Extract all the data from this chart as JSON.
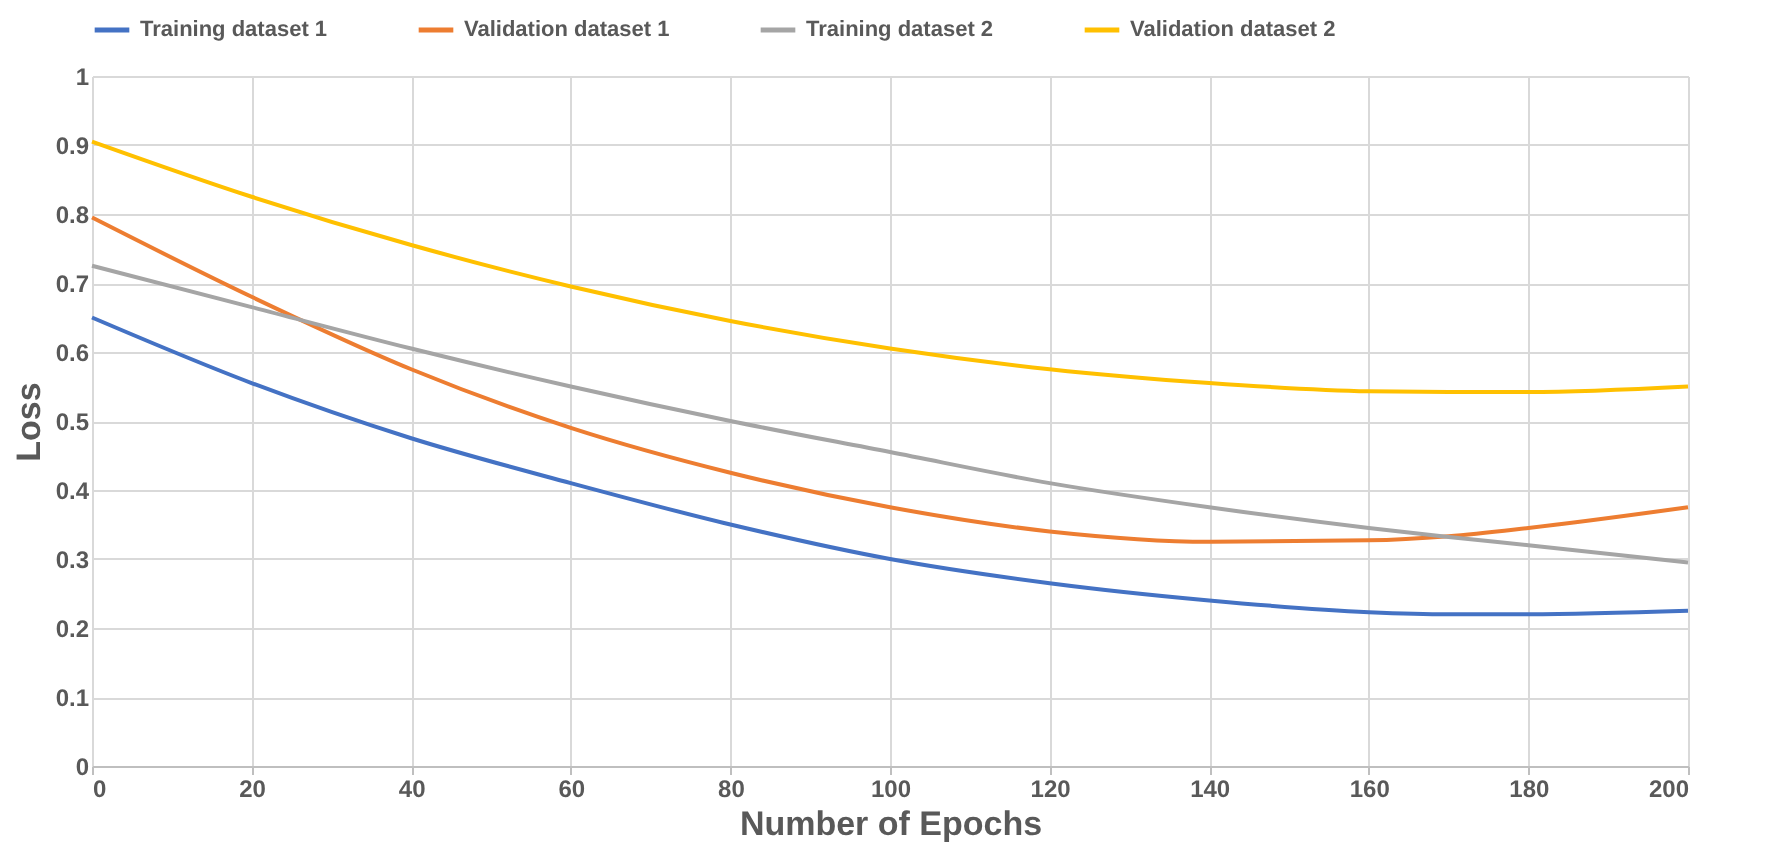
{
  "chart_data": {
    "type": "line",
    "xlabel": "Number of Epochs",
    "ylabel": "Loss",
    "x": [
      0,
      20,
      40,
      60,
      80,
      100,
      120,
      140,
      160,
      170,
      180,
      200
    ],
    "series": [
      {
        "name": "Training dataset 1",
        "color": "#4472c4",
        "values": [
          0.65,
          0.555,
          0.475,
          0.41,
          0.35,
          0.3,
          0.265,
          0.24,
          0.223,
          0.22,
          0.22,
          0.225
        ]
      },
      {
        "name": "Validation dataset 1",
        "color": "#ed7d31",
        "values": [
          0.795,
          0.68,
          0.575,
          0.49,
          0.425,
          0.375,
          0.34,
          0.325,
          0.327,
          0.333,
          0.345,
          0.375
        ]
      },
      {
        "name": "Training dataset 2",
        "color": "#a5a5a5",
        "values": [
          0.725,
          0.665,
          0.605,
          0.55,
          0.5,
          0.455,
          0.41,
          0.375,
          0.345,
          0.332,
          0.32,
          0.295
        ]
      },
      {
        "name": "Validation dataset 2",
        "color": "#ffc000",
        "values": [
          0.905,
          0.825,
          0.755,
          0.695,
          0.645,
          0.605,
          0.575,
          0.555,
          0.543,
          0.542,
          0.542,
          0.55
        ]
      }
    ],
    "xlim": [
      0,
      200
    ],
    "xticks": [
      0,
      20,
      40,
      60,
      80,
      100,
      120,
      140,
      160,
      180,
      200
    ],
    "ylim": [
      0,
      1
    ],
    "yticks": [
      0,
      0.1,
      0.2,
      0.3,
      0.4,
      0.5,
      0.6,
      0.7,
      0.8,
      0.9,
      1
    ],
    "grid": true,
    "legend": "top",
    "marker": "none",
    "line_style": "solid"
  }
}
